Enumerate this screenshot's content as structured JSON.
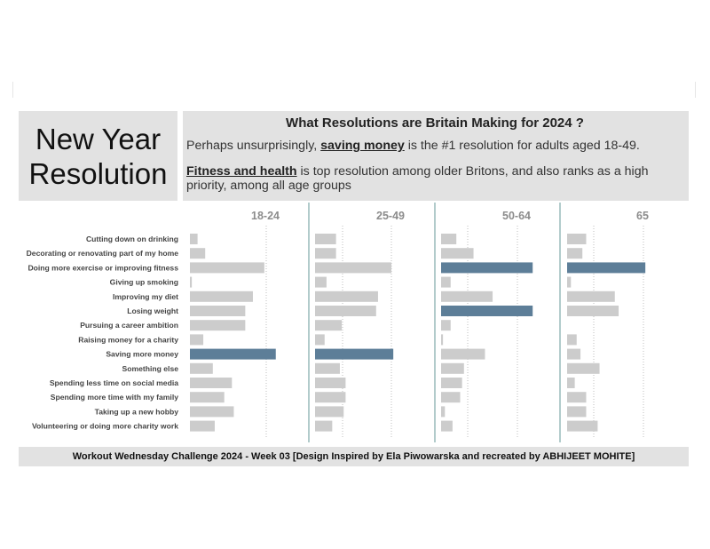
{
  "title": "New Year Resolution",
  "info": {
    "heading": "What Resolutions are Britain Making for 2024 ?",
    "line1_prefix": "Perhaps unsurprisingly,",
    "line1_highlight": "saving money",
    "line1_suffix": "is the #1 resolution for adults aged 18-49.",
    "line2_highlight": "Fitness and health",
    "line2_suffix": "is top resolution among older Britons, and also ranks as a high priority, among all age groups"
  },
  "footer": "Workout Wednesday Challenge 2024 - Week 03 [Design Inspired by Ela Piwowarska and recreated by ABHIJEET MOHITE]",
  "colors": {
    "bar": "#cccccc",
    "highlight": "#5d7e98",
    "divider": "#7fa9a9",
    "grid": "#bdbdbd"
  },
  "chart_data": {
    "type": "bar",
    "orientation": "horizontal",
    "unit": "%",
    "xlim": [
      0,
      40
    ],
    "gridlines": [
      20,
      40
    ],
    "categories": [
      "Cutting down on drinking",
      "Decorating or renovating part of my home",
      "Doing more exercise or improving fitness",
      "Giving up smoking",
      "Improving my diet",
      "Losing weight",
      "Pursuing a career ambition",
      "Raising money for a charity",
      "Saving more money",
      "Something else",
      "Spending less time on social media",
      "Spending more time with my family",
      "Taking up a new hobby",
      "Volunteering or doing more charity work"
    ],
    "series": [
      {
        "name": "18-24",
        "values": [
          2,
          4,
          19.5,
          0.5,
          16.5,
          14.5,
          14.5,
          3.5,
          22.5,
          6,
          11,
          9,
          11.5,
          6.5
        ],
        "highlight": [
          8
        ]
      },
      {
        "name": "25-49",
        "values": [
          5.5,
          5.5,
          20,
          3,
          16.5,
          16,
          7,
          2.5,
          20.5,
          6.5,
          8,
          8,
          7.5,
          4.5
        ],
        "highlight": [
          8
        ]
      },
      {
        "name": "50-64",
        "values": [
          4,
          8.5,
          24,
          2.5,
          13.5,
          24,
          2.5,
          0.5,
          11.5,
          6,
          5.5,
          5,
          1,
          3
        ],
        "highlight": [
          2,
          5
        ]
      },
      {
        "name": "65",
        "values": [
          5,
          4,
          20.5,
          1,
          12.5,
          13.5,
          0,
          2.5,
          3.5,
          8.5,
          2,
          5,
          5,
          8
        ],
        "highlight": [
          2
        ]
      }
    ]
  }
}
